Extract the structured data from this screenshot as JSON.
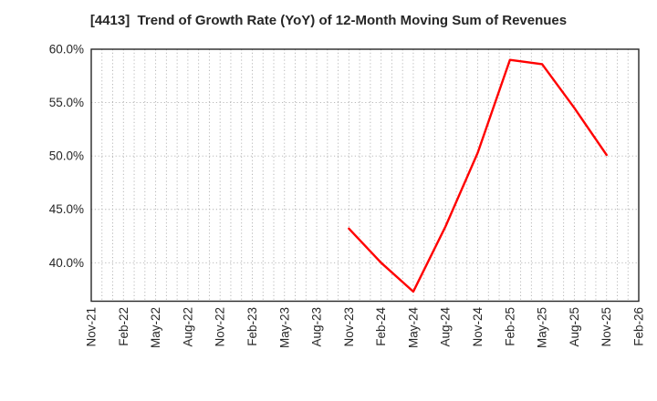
{
  "chart_data": {
    "type": "line",
    "title": "[4413]  Trend of Growth Rate (YoY) of 12-Month Moving Sum of Revenues",
    "xlabel": "",
    "ylabel": "",
    "x_tick_labels": [
      "Nov-21",
      "Feb-22",
      "May-22",
      "Aug-22",
      "Nov-22",
      "Feb-23",
      "May-23",
      "Aug-23",
      "Nov-23",
      "Feb-24",
      "May-24",
      "Aug-24",
      "Nov-24",
      "Feb-25",
      "May-25",
      "Aug-25",
      "Nov-25",
      "Feb-26"
    ],
    "x_tick_interval_months": 3,
    "x_axis_span_months": 51,
    "x_minor_grid_interval_months": 1,
    "y_tick_labels": [
      "60.0%",
      "55.0%",
      "50.0%",
      "45.0%",
      "40.0%"
    ],
    "y_tick_values": [
      60.0,
      55.0,
      50.0,
      45.0,
      40.0
    ],
    "ylim": [
      36.4,
      60.0
    ],
    "grid": "dotted",
    "legend_position": "none",
    "series": [
      {
        "name": "Growth Rate (YoY) of 12-Month Moving Sum of Revenues",
        "color": "#ff0000",
        "points": [
          {
            "x": "Nov-23",
            "month_index": 24,
            "y": 43.2
          },
          {
            "x": "Feb-24",
            "month_index": 27,
            "y": 40.0
          },
          {
            "x": "May-24",
            "month_index": 30,
            "y": 37.3
          },
          {
            "x": "Aug-24",
            "month_index": 33,
            "y": 43.4
          },
          {
            "x": "Nov-24",
            "month_index": 36,
            "y": 50.3
          },
          {
            "x": "Feb-25",
            "month_index": 39,
            "y": 59.0
          },
          {
            "x": "May-25",
            "month_index": 42,
            "y": 58.6
          },
          {
            "x": "Aug-25",
            "month_index": 45,
            "y": 54.5
          },
          {
            "x": "Nov-25",
            "month_index": 48,
            "y": 50.1
          }
        ]
      }
    ],
    "colors": {
      "line": "#ff0000",
      "text": "#262626",
      "grid": "#b0b0b0",
      "axis_border": "#262626",
      "background": "#ffffff"
    }
  }
}
